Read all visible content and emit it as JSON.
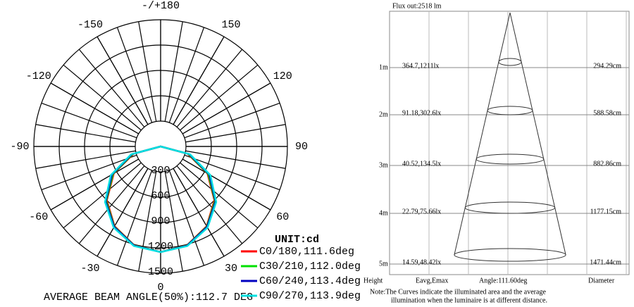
{
  "chart_data": {
    "type": "polar",
    "unit": "UNIT:cd",
    "footer": "AVERAGE BEAM ANGLE(50%):112.7 DEG",
    "x": [
      -90,
      -75,
      -60,
      -45,
      -30,
      -15,
      0,
      15,
      30,
      45,
      60,
      75,
      90
    ],
    "series": [
      {
        "name": "C0/180,111.6deg",
        "color": "#ff0000",
        "values": [
          0,
          330,
          640,
          900,
          1090,
          1210,
          1250,
          1210,
          1090,
          900,
          640,
          330,
          0
        ]
      },
      {
        "name": "C30/210,112.0deg",
        "color": "#00e000",
        "values": [
          0,
          340,
          650,
          910,
          1095,
          1212,
          1250,
          1212,
          1095,
          910,
          650,
          340,
          0
        ]
      },
      {
        "name": "C60/240,113.4deg",
        "color": "#0000c0",
        "values": [
          0,
          350,
          665,
          920,
          1100,
          1215,
          1250,
          1215,
          1100,
          920,
          665,
          350,
          0
        ]
      },
      {
        "name": "C90/270,113.9deg",
        "color": "#00e0e0",
        "values": [
          0,
          360,
          680,
          930,
          1110,
          1220,
          1250,
          1220,
          1110,
          930,
          680,
          360,
          0
        ]
      }
    ],
    "rlim": [
      0,
      1500
    ],
    "rticks": [
      300,
      600,
      900,
      1200,
      1500
    ],
    "thetaticks": [
      {
        "value": 180,
        "label": "-/+180"
      },
      -150,
      150,
      -120,
      120,
      -90,
      90,
      -60,
      60,
      -30,
      30,
      0
    ],
    "grid": true
  },
  "cone": {
    "flux": "Flux out:2518 lm",
    "rows": [
      {
        "height": "1m",
        "illuminance": "364.7,1211lx",
        "diameter": "294.29cm"
      },
      {
        "height": "2m",
        "illuminance": "91.18,302.6lx",
        "diameter": "588.58cm"
      },
      {
        "height": "3m",
        "illuminance": "40.52,134.5lx",
        "diameter": "882.86cm"
      },
      {
        "height": "4m",
        "illuminance": "22.79,75.66lx",
        "diameter": "1177.15cm"
      },
      {
        "height": "5m",
        "illuminance": "14.59,48.42lx",
        "diameter": "1471.44cm"
      }
    ],
    "headers": [
      "Height",
      "Eavg,Emax",
      "Angle:111.60deg",
      "Diameter"
    ],
    "note": [
      "Note:The Curves indicate the illuminated area and the average",
      "illumination when the luminaire is at different distance."
    ]
  }
}
